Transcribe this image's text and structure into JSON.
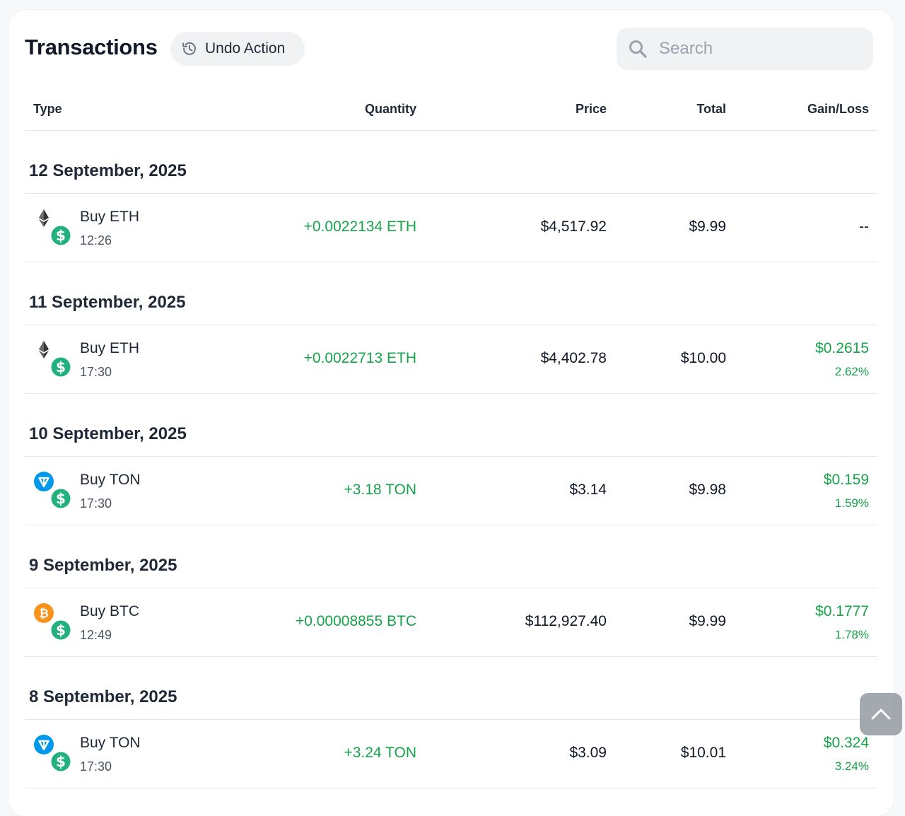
{
  "header": {
    "title": "Transactions",
    "undo_label": "Undo Action",
    "search_placeholder": "Search"
  },
  "columns": {
    "type": "Type",
    "quantity": "Quantity",
    "price": "Price",
    "total": "Total",
    "gain_loss": "Gain/Loss"
  },
  "groups": [
    {
      "date": "12 September, 2025",
      "tx": {
        "coin": "eth",
        "name": "Buy ETH",
        "time": "12:26",
        "quantity": "+0.0022134 ETH",
        "price": "$4,517.92",
        "total": "$9.99",
        "gain": "--",
        "pct": ""
      }
    },
    {
      "date": "11 September, 2025",
      "tx": {
        "coin": "eth",
        "name": "Buy ETH",
        "time": "17:30",
        "quantity": "+0.0022713 ETH",
        "price": "$4,402.78",
        "total": "$10.00",
        "gain": "$0.2615",
        "pct": "2.62%"
      }
    },
    {
      "date": "10 September, 2025",
      "tx": {
        "coin": "ton",
        "name": "Buy TON",
        "time": "17:30",
        "quantity": "+3.18 TON",
        "price": "$3.14",
        "total": "$9.98",
        "gain": "$0.159",
        "pct": "1.59%"
      }
    },
    {
      "date": "9 September, 2025",
      "tx": {
        "coin": "btc",
        "name": "Buy BTC",
        "time": "12:49",
        "quantity": "+0.00008855 BTC",
        "price": "$112,927.40",
        "total": "$9.99",
        "gain": "$0.1777",
        "pct": "1.78%"
      }
    },
    {
      "date": "8 September, 2025",
      "tx": {
        "coin": "ton",
        "name": "Buy TON",
        "time": "17:30",
        "quantity": "+3.24 TON",
        "price": "$3.09",
        "total": "$10.01",
        "gain": "$0.324",
        "pct": "3.24%"
      }
    }
  ],
  "colors": {
    "positive": "#16a34a",
    "usd_badge": "#22b07d",
    "btc": "#f7931a",
    "ton": "#0098ea",
    "eth": "#343434"
  },
  "icons": {
    "undo": "history-icon",
    "search": "search-icon",
    "scroll_top": "chevron-up-icon"
  }
}
